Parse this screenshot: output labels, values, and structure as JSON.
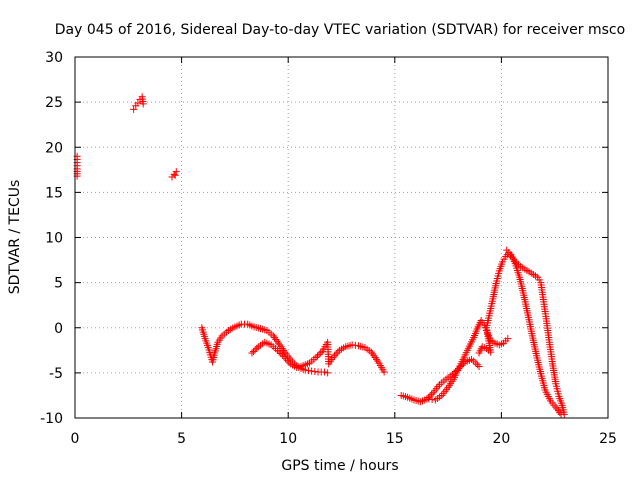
{
  "chart_data": {
    "type": "scatter",
    "title": "Day 045 of 2016, Sidereal Day-to-day VTEC variation (SDTVAR) for receiver msco",
    "xlabel": "GPS time / hours",
    "ylabel": "SDTVAR / TECUs",
    "xlim": [
      0,
      25
    ],
    "ylim": [
      -10,
      30
    ],
    "xticks": [
      0,
      5,
      10,
      15,
      20,
      25
    ],
    "yticks": [
      -10,
      -5,
      0,
      5,
      10,
      15,
      20,
      25,
      30
    ],
    "grid": true,
    "marker": "+",
    "series_color": "#ff0000",
    "series": [
      {
        "name": "SDTVAR",
        "points": [
          [
            0.1,
            19.0
          ],
          [
            0.1,
            18.3
          ],
          [
            0.1,
            17.6
          ],
          [
            0.1,
            16.8
          ],
          [
            2.75,
            24.2
          ],
          [
            2.85,
            24.6
          ],
          [
            2.95,
            24.9
          ],
          [
            3.05,
            25.3
          ],
          [
            3.15,
            25.6
          ],
          [
            3.2,
            24.8
          ],
          [
            4.55,
            16.7
          ],
          [
            4.65,
            17.0
          ],
          [
            4.75,
            17.3
          ],
          [
            4.7,
            16.9
          ],
          [
            5.95,
            0.0
          ],
          [
            6.1,
            -1.2
          ],
          [
            6.25,
            -2.2
          ],
          [
            6.35,
            -3.0
          ],
          [
            6.45,
            -3.8
          ],
          [
            6.55,
            -2.8
          ],
          [
            6.7,
            -1.6
          ],
          [
            6.9,
            -0.9
          ],
          [
            7.2,
            -0.3
          ],
          [
            7.5,
            0.1
          ],
          [
            7.8,
            0.4
          ],
          [
            8.1,
            0.4
          ],
          [
            8.4,
            0.1
          ],
          [
            8.7,
            -0.1
          ],
          [
            9.0,
            -0.3
          ],
          [
            9.3,
            -0.9
          ],
          [
            9.6,
            -1.9
          ],
          [
            9.9,
            -2.9
          ],
          [
            10.2,
            -3.8
          ],
          [
            10.5,
            -4.4
          ],
          [
            10.8,
            -4.7
          ],
          [
            11.1,
            -4.8
          ],
          [
            11.4,
            -4.9
          ],
          [
            11.7,
            -4.9
          ],
          [
            11.85,
            -5.0
          ],
          [
            8.3,
            -2.8
          ],
          [
            8.6,
            -2.1
          ],
          [
            8.9,
            -1.6
          ],
          [
            9.2,
            -1.9
          ],
          [
            9.5,
            -2.5
          ],
          [
            9.8,
            -3.2
          ],
          [
            10.1,
            -4.0
          ],
          [
            10.4,
            -4.4
          ],
          [
            10.7,
            -4.2
          ],
          [
            11.0,
            -3.9
          ],
          [
            11.3,
            -3.3
          ],
          [
            11.6,
            -2.6
          ],
          [
            11.85,
            -1.6
          ],
          [
            11.9,
            -4.0
          ],
          [
            12.1,
            -3.3
          ],
          [
            12.4,
            -2.5
          ],
          [
            12.7,
            -2.1
          ],
          [
            13.0,
            -1.9
          ],
          [
            13.3,
            -2.0
          ],
          [
            13.6,
            -2.2
          ],
          [
            13.9,
            -2.7
          ],
          [
            14.2,
            -3.7
          ],
          [
            14.5,
            -4.9
          ],
          [
            15.3,
            -7.5
          ],
          [
            15.6,
            -7.7
          ],
          [
            15.9,
            -8.0
          ],
          [
            16.2,
            -8.2
          ],
          [
            16.5,
            -7.9
          ],
          [
            16.8,
            -7.2
          ],
          [
            17.1,
            -6.3
          ],
          [
            17.4,
            -5.7
          ],
          [
            17.7,
            -5.2
          ],
          [
            18.0,
            -4.5
          ],
          [
            18.3,
            -3.8
          ],
          [
            18.6,
            -3.5
          ],
          [
            18.8,
            -3.9
          ],
          [
            18.95,
            -4.3
          ],
          [
            16.6,
            -7.9
          ],
          [
            16.9,
            -8.0
          ],
          [
            17.2,
            -7.5
          ],
          [
            17.5,
            -6.6
          ],
          [
            17.8,
            -5.5
          ],
          [
            18.1,
            -4.0
          ],
          [
            18.4,
            -2.5
          ],
          [
            18.7,
            -1.1
          ],
          [
            18.9,
            0.1
          ],
          [
            19.05,
            0.8
          ],
          [
            19.2,
            0.3
          ],
          [
            19.35,
            -0.6
          ],
          [
            19.5,
            -1.4
          ],
          [
            19.7,
            -1.7
          ],
          [
            19.9,
            -1.9
          ],
          [
            20.1,
            -1.7
          ],
          [
            20.3,
            -1.2
          ],
          [
            18.95,
            -2.8
          ],
          [
            19.1,
            -2.1
          ],
          [
            19.3,
            -2.3
          ],
          [
            19.5,
            -2.7
          ],
          [
            19.3,
            0.0
          ],
          [
            19.45,
            1.6
          ],
          [
            19.6,
            3.2
          ],
          [
            19.75,
            4.9
          ],
          [
            19.9,
            6.3
          ],
          [
            20.05,
            7.3
          ],
          [
            20.2,
            7.9
          ],
          [
            20.35,
            8.3
          ],
          [
            20.5,
            7.8
          ],
          [
            20.7,
            7.2
          ],
          [
            20.9,
            6.8
          ],
          [
            21.1,
            6.5
          ],
          [
            21.3,
            6.2
          ],
          [
            21.5,
            5.9
          ],
          [
            21.7,
            5.6
          ],
          [
            21.85,
            5.0
          ],
          [
            21.95,
            3.4
          ],
          [
            22.1,
            1.0
          ],
          [
            22.25,
            -1.6
          ],
          [
            22.4,
            -4.0
          ],
          [
            22.55,
            -6.2
          ],
          [
            22.7,
            -7.6
          ],
          [
            22.85,
            -8.6
          ],
          [
            22.95,
            -9.6
          ],
          [
            20.25,
            8.6
          ],
          [
            20.45,
            8.1
          ],
          [
            20.65,
            7.1
          ],
          [
            20.85,
            5.6
          ],
          [
            21.05,
            3.6
          ],
          [
            21.25,
            1.4
          ],
          [
            21.45,
            -0.9
          ],
          [
            21.65,
            -3.1
          ],
          [
            21.85,
            -5.1
          ],
          [
            22.05,
            -6.9
          ],
          [
            22.3,
            -8.1
          ],
          [
            22.55,
            -8.8
          ],
          [
            22.8,
            -9.6
          ]
        ]
      }
    ]
  }
}
